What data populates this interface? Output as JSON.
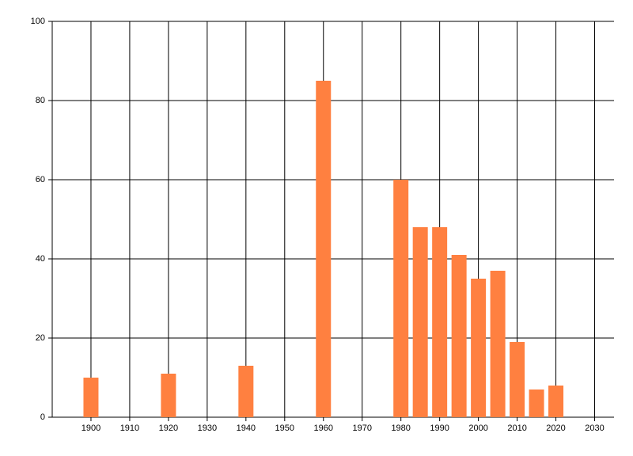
{
  "chart_data": {
    "type": "bar",
    "x": [
      1900,
      1920,
      1940,
      1960,
      1980,
      1985,
      1990,
      1995,
      2000,
      2005,
      2010,
      2015,
      2020
    ],
    "values": [
      10,
      11,
      13,
      85,
      60,
      48,
      48,
      41,
      35,
      37,
      19,
      7,
      8
    ],
    "color": "#ff8040",
    "xlim": [
      1890,
      2035
    ],
    "xticks": [
      1900,
      1910,
      1920,
      1930,
      1940,
      1950,
      1960,
      1970,
      1980,
      1990,
      2000,
      2010,
      2020,
      2030
    ],
    "ylim": [
      0,
      100
    ],
    "yticks": [
      0,
      20,
      40,
      60,
      80,
      100
    ],
    "grid": true
  }
}
